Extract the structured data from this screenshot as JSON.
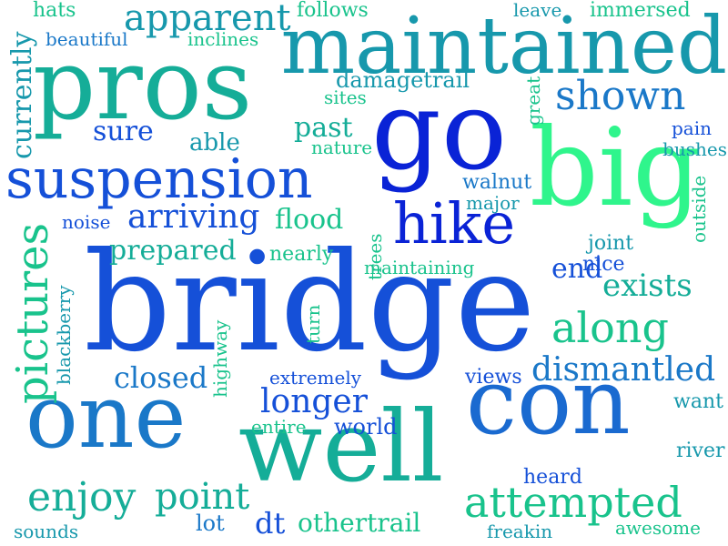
{
  "palette": {
    "dark_blue": "#0a23d6",
    "blue": "#1550d8",
    "mid_blue": "#1a78c8",
    "teal_blue": "#1798ac",
    "teal": "#15ad98",
    "sea_green": "#19c38c",
    "green": "#22e08a",
    "light_green": "#2ff58c"
  },
  "words": [
    {
      "text": "bridge",
      "color": "#1550d8",
      "rotate": false
    },
    {
      "text": "go",
      "color": "#0a23d6",
      "rotate": false
    },
    {
      "text": "big",
      "color": "#2ff58c",
      "rotate": false
    },
    {
      "text": "pros",
      "color": "#15ad98",
      "rotate": false
    },
    {
      "text": "maintained",
      "color": "#1798ac",
      "rotate": false
    },
    {
      "text": "one",
      "color": "#1a78c8",
      "rotate": false
    },
    {
      "text": "well",
      "color": "#15ad98",
      "rotate": false
    },
    {
      "text": "con",
      "color": "#1a6ad0",
      "rotate": false
    },
    {
      "text": "suspension",
      "color": "#1550d8",
      "rotate": false
    },
    {
      "text": "hike",
      "color": "#0a23d6",
      "rotate": false
    },
    {
      "text": "pictures",
      "color": "#19c38c",
      "rotate": true
    },
    {
      "text": "apparent",
      "color": "#1798ac",
      "rotate": false
    },
    {
      "text": "shown",
      "color": "#1a78c8",
      "rotate": false
    },
    {
      "text": "along",
      "color": "#19c38c",
      "rotate": false
    },
    {
      "text": "attempted",
      "color": "#19c38c",
      "rotate": false
    },
    {
      "text": "dismantled",
      "color": "#1a78c8",
      "rotate": false
    },
    {
      "text": "arriving",
      "color": "#1550d8",
      "rotate": false
    },
    {
      "text": "enjoy",
      "color": "#15ad98",
      "rotate": false
    },
    {
      "text": "point",
      "color": "#15ad98",
      "rotate": false
    },
    {
      "text": "longer",
      "color": "#1550d8",
      "rotate": false
    },
    {
      "text": "exists",
      "color": "#15ad98",
      "rotate": false
    },
    {
      "text": "closed",
      "color": "#1a78c8",
      "rotate": false
    },
    {
      "text": "prepared",
      "color": "#15ad98",
      "rotate": false
    },
    {
      "text": "flood",
      "color": "#19c38c",
      "rotate": false
    },
    {
      "text": "currently",
      "color": "#1798ac",
      "rotate": true
    },
    {
      "text": "sure",
      "color": "#1550d8",
      "rotate": false
    },
    {
      "text": "past",
      "color": "#15ad98",
      "rotate": false
    },
    {
      "text": "damagetrail",
      "color": "#1798ac",
      "rotate": false
    },
    {
      "text": "othertrail",
      "color": "#19c38c",
      "rotate": false
    },
    {
      "text": "dt",
      "color": "#1550d8",
      "rotate": false
    },
    {
      "text": "end",
      "color": "#1550d8",
      "rotate": false
    },
    {
      "text": "able",
      "color": "#1798ac",
      "rotate": false
    },
    {
      "text": "lot",
      "color": "#1a78c8",
      "rotate": false
    },
    {
      "text": "hats",
      "color": "#19c38c",
      "rotate": false
    },
    {
      "text": "follows",
      "color": "#19c38c",
      "rotate": false
    },
    {
      "text": "leave",
      "color": "#1798ac",
      "rotate": false
    },
    {
      "text": "immersed",
      "color": "#19c38c",
      "rotate": false
    },
    {
      "text": "beautiful",
      "color": "#1a78c8",
      "rotate": false
    },
    {
      "text": "inclines",
      "color": "#19c38c",
      "rotate": false
    },
    {
      "text": "sites",
      "color": "#19c38c",
      "rotate": false
    },
    {
      "text": "great",
      "color": "#19c38c",
      "rotate": true
    },
    {
      "text": "pain",
      "color": "#1550d8",
      "rotate": false
    },
    {
      "text": "nature",
      "color": "#19c38c",
      "rotate": false
    },
    {
      "text": "bushes",
      "color": "#1798ac",
      "rotate": false
    },
    {
      "text": "walnut",
      "color": "#1a78c8",
      "rotate": false
    },
    {
      "text": "major",
      "color": "#1798ac",
      "rotate": false
    },
    {
      "text": "outside",
      "color": "#19c38c",
      "rotate": true
    },
    {
      "text": "noise",
      "color": "#1550d8",
      "rotate": false
    },
    {
      "text": "trees",
      "color": "#19c38c",
      "rotate": true
    },
    {
      "text": "joint",
      "color": "#1798ac",
      "rotate": false
    },
    {
      "text": "nearly",
      "color": "#19c38c",
      "rotate": false
    },
    {
      "text": "nice",
      "color": "#1550d8",
      "rotate": false
    },
    {
      "text": "maintaining",
      "color": "#19c38c",
      "rotate": false
    },
    {
      "text": "blackberry",
      "color": "#1798ac",
      "rotate": true
    },
    {
      "text": "highway",
      "color": "#19c38c",
      "rotate": true
    },
    {
      "text": "turn",
      "color": "#19c38c",
      "rotate": true
    },
    {
      "text": "extremely",
      "color": "#1550d8",
      "rotate": false
    },
    {
      "text": "views",
      "color": "#1550d8",
      "rotate": false
    },
    {
      "text": "want",
      "color": "#1798ac",
      "rotate": false
    },
    {
      "text": "entire",
      "color": "#19c38c",
      "rotate": false
    },
    {
      "text": "world",
      "color": "#1550d8",
      "rotate": false
    },
    {
      "text": "river",
      "color": "#1798ac",
      "rotate": false
    },
    {
      "text": "heard",
      "color": "#1550d8",
      "rotate": false
    },
    {
      "text": "sounds",
      "color": "#1798ac",
      "rotate": false
    },
    {
      "text": "freakin",
      "color": "#1798ac",
      "rotate": false
    },
    {
      "text": "awesome",
      "color": "#19c38c",
      "rotate": false
    }
  ]
}
